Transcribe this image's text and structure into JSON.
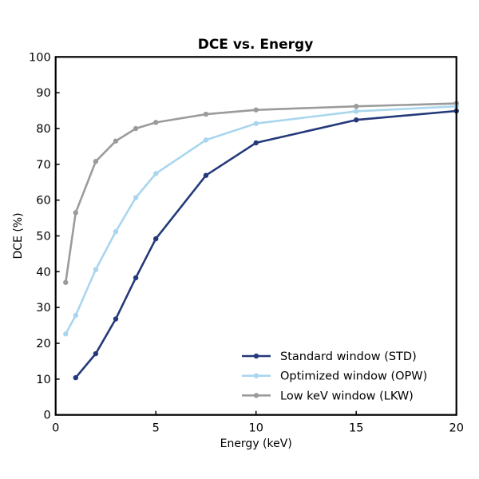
{
  "chart_data": {
    "type": "line",
    "title": "DCE vs. Energy",
    "xlabel": "Energy (keV)",
    "ylabel": "DCE (%)",
    "xlim": [
      0,
      20
    ],
    "ylim": [
      0,
      100
    ],
    "xticks": [
      0,
      5,
      10,
      15,
      20
    ],
    "yticks": [
      0,
      10,
      20,
      30,
      40,
      50,
      60,
      70,
      80,
      90,
      100
    ],
    "grid": false,
    "legend_position": "bottom-right",
    "series": [
      {
        "name": "Standard window (STD)",
        "color": "#24397a",
        "x": [
          1,
          2,
          3,
          4,
          5,
          7.5,
          10,
          15,
          20
        ],
        "y": [
          10.4,
          17.1,
          26.8,
          38.3,
          49.2,
          66.9,
          76.0,
          82.4,
          84.9
        ]
      },
      {
        "name": "Optimized window (OPW)",
        "color": "#a9d6ee",
        "x": [
          0.5,
          1,
          2,
          3,
          4,
          5,
          7.5,
          10,
          15,
          20
        ],
        "y": [
          22.6,
          27.8,
          40.6,
          51.2,
          60.7,
          67.4,
          76.8,
          81.4,
          84.8,
          86.2
        ]
      },
      {
        "name": "Low keV window (LKW)",
        "color": "#9b9b9b",
        "x": [
          0.5,
          1,
          2,
          3,
          4,
          5,
          7.5,
          10,
          15,
          20
        ],
        "y": [
          37.0,
          56.5,
          70.8,
          76.5,
          80.0,
          81.7,
          84.0,
          85.2,
          86.2,
          87.0
        ]
      }
    ]
  }
}
